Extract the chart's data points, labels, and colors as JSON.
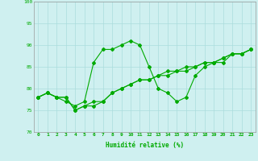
{
  "xlabel": "Humidité relative (%)",
  "ylim": [
    70,
    100
  ],
  "xlim": [
    -0.5,
    23.5
  ],
  "yticks": [
    70,
    75,
    80,
    85,
    90,
    95,
    100
  ],
  "xticks": [
    0,
    1,
    2,
    3,
    4,
    5,
    6,
    7,
    8,
    9,
    10,
    11,
    12,
    13,
    14,
    15,
    16,
    17,
    18,
    19,
    20,
    21,
    22,
    23
  ],
  "background_color": "#cff0f0",
  "grid_color": "#aadddd",
  "line_color": "#00aa00",
  "line1": [
    78,
    79,
    78,
    77,
    76,
    77,
    86,
    89,
    89,
    90,
    91,
    90,
    85,
    80,
    79,
    77,
    78,
    83,
    85,
    86,
    86,
    88,
    88,
    89
  ],
  "line2": [
    78,
    79,
    78,
    78,
    75,
    76,
    77,
    77,
    79,
    80,
    81,
    82,
    82,
    83,
    84,
    84,
    85,
    85,
    86,
    86,
    87,
    88,
    88,
    89
  ],
  "line3": [
    78,
    79,
    78,
    78,
    75,
    76,
    76,
    77,
    79,
    80,
    81,
    82,
    82,
    83,
    83,
    84,
    84,
    85,
    86,
    86,
    87,
    88,
    88,
    89
  ],
  "marker": "D",
  "markersize": 2.0,
  "linewidth": 0.8,
  "tick_fontsize": 4.5,
  "xlabel_fontsize": 5.5
}
